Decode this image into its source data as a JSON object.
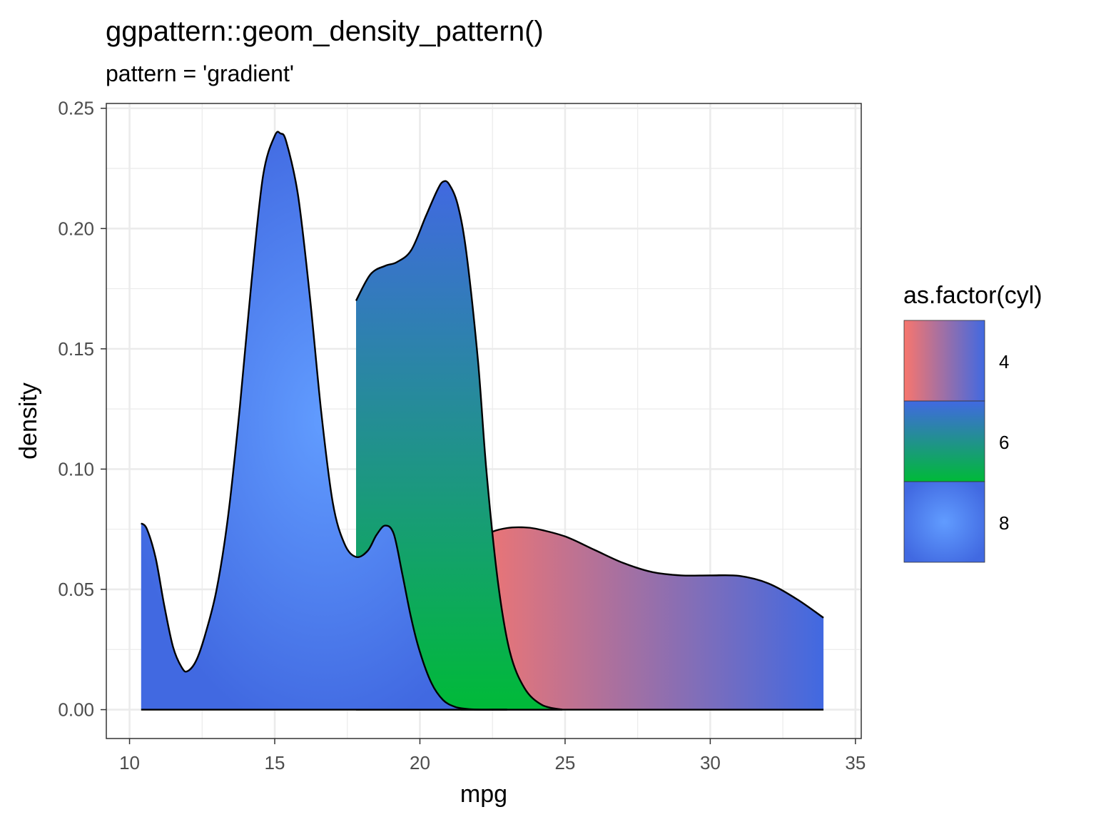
{
  "chart_data": {
    "type": "area",
    "title": "ggpattern::geom_density_pattern()",
    "subtitle": "pattern = 'gradient'",
    "xlabel": "mpg",
    "ylabel": "density",
    "xlim": [
      9.2,
      35.2
    ],
    "ylim": [
      -0.012,
      0.252
    ],
    "x_ticks": [
      10,
      15,
      20,
      25,
      30,
      35
    ],
    "y_ticks": [
      0.0,
      0.05,
      0.1,
      0.15,
      0.2,
      0.25
    ],
    "x_tick_labels": [
      "10",
      "15",
      "20",
      "25",
      "30",
      "35"
    ],
    "y_tick_labels": [
      "0.00",
      "0.05",
      "0.10",
      "0.15",
      "0.20",
      "0.25"
    ],
    "grid": true,
    "legend": {
      "title": "as.factor(cyl)",
      "position": "right",
      "entries": [
        {
          "label": "4",
          "pattern": "linear-horizontal",
          "colors": [
            "#F8766D",
            "#4169E1"
          ]
        },
        {
          "label": "6",
          "pattern": "linear-vertical",
          "colors": [
            "#4169E1",
            "#00BA38"
          ]
        },
        {
          "label": "8",
          "pattern": "radial",
          "colors": [
            "#619CFF",
            "#4169E1"
          ]
        }
      ]
    },
    "series": [
      {
        "name": "4",
        "pattern": "linear-horizontal",
        "colors": [
          "#F8766D",
          "#4169E1"
        ],
        "x": [
          21.4,
          22.0,
          22.5,
          23.0,
          23.5,
          24.0,
          25.0,
          26.0,
          27.0,
          28.0,
          29.0,
          30.0,
          31.0,
          32.0,
          33.0,
          33.9
        ],
        "y": [
          0.067,
          0.071,
          0.074,
          0.0755,
          0.0758,
          0.0752,
          0.072,
          0.0665,
          0.061,
          0.0572,
          0.0558,
          0.0558,
          0.0556,
          0.0525,
          0.0458,
          0.0382
        ]
      },
      {
        "name": "6",
        "pattern": "linear-vertical",
        "colors": [
          "#4169E1",
          "#00BA38"
        ],
        "x": [
          17.8,
          18.3,
          18.8,
          19.2,
          19.7,
          20.2,
          20.6,
          20.8,
          21.0,
          21.3,
          21.6,
          22.0,
          22.3,
          22.7,
          23.1,
          23.6,
          24.2,
          24.9
        ],
        "y": [
          0.17,
          0.181,
          0.1845,
          0.186,
          0.191,
          0.205,
          0.216,
          0.2195,
          0.2185,
          0.21,
          0.19,
          0.145,
          0.098,
          0.052,
          0.024,
          0.009,
          0.002,
          0.0
        ]
      },
      {
        "name": "8",
        "pattern": "radial",
        "colors": [
          "#619CFF",
          "#4169E1"
        ],
        "x": [
          10.4,
          10.6,
          10.9,
          11.2,
          11.5,
          11.8,
          12.0,
          12.3,
          12.6,
          13.0,
          13.4,
          13.8,
          14.2,
          14.6,
          15.0,
          15.2,
          15.4,
          15.8,
          16.2,
          16.6,
          17.0,
          17.4,
          17.8,
          18.2,
          18.5,
          18.8,
          19.1,
          19.4,
          19.7,
          20.0,
          20.4,
          20.8,
          21.2,
          21.6,
          22.0,
          22.5,
          23.0
        ],
        "y": [
          0.0775,
          0.075,
          0.063,
          0.043,
          0.026,
          0.0175,
          0.016,
          0.0205,
          0.031,
          0.05,
          0.081,
          0.126,
          0.178,
          0.222,
          0.2385,
          0.2395,
          0.236,
          0.214,
          0.173,
          0.124,
          0.086,
          0.069,
          0.0635,
          0.066,
          0.0725,
          0.0765,
          0.073,
          0.056,
          0.038,
          0.024,
          0.011,
          0.004,
          0.0012,
          0.0003,
          0.0,
          0.0,
          0.0
        ]
      }
    ]
  }
}
